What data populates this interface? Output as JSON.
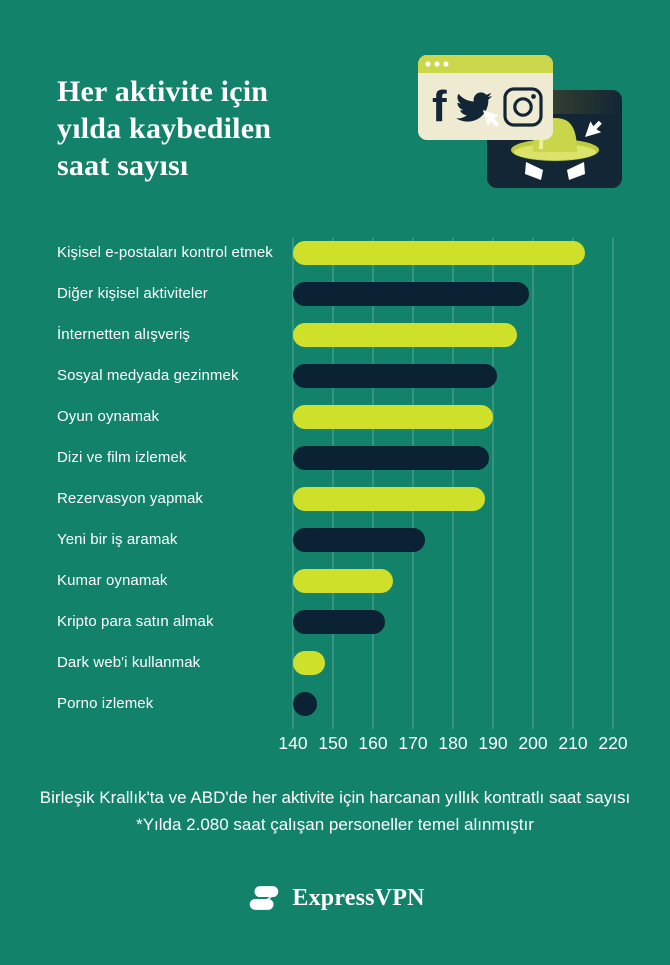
{
  "header": {
    "title": "Her aktivite için\nyılda kaybedilen\nsaat sayısı"
  },
  "illustration": {
    "icons": [
      "browser-window-icon",
      "facebook-icon",
      "twitter-icon",
      "instagram-icon",
      "cursor-icon",
      "spy-incognito-icon"
    ]
  },
  "chart_data": {
    "type": "bar",
    "orientation": "horizontal",
    "title": "Her aktivite için yılda kaybedilen saat sayısı",
    "categories": [
      "Kişisel e-postaları kontrol etmek",
      "Diğer kişisel aktiviteler",
      "İnternetten alışveriş",
      "Sosyal medyada gezinmek",
      "Oyun oynamak",
      "Dizi ve film izlemek",
      "Rezervasyon yapmak",
      "Yeni bir iş aramak",
      "Kumar oynamak",
      "Kripto para satın almak",
      "Dark web'i kullanmak",
      "Porno izlemek"
    ],
    "values": [
      213,
      199,
      196,
      191,
      190,
      189,
      188,
      173,
      165,
      163,
      148,
      146
    ],
    "bar_colors_alternating": [
      "#CFE02B",
      "#0A2233"
    ],
    "x_ticks": [
      140,
      150,
      160,
      170,
      180,
      190,
      200,
      210,
      220
    ],
    "xlim": [
      140,
      220
    ],
    "grid": true,
    "legend": "none",
    "xlabel": "",
    "ylabel": ""
  },
  "footnote": {
    "line1": "Birleşik Krallık'ta ve ABD'de her aktivite için harcanan yıllık kontratlı saat sayısı",
    "line2": "*Yılda 2.080 saat çalışan personeller temel alınmıştır"
  },
  "brand": {
    "name": "ExpressVPN"
  },
  "colors": {
    "bg": "#12826B",
    "lime": "#CFE02B",
    "navy": "#0A2233",
    "cream": "#EFEBD3",
    "card": "#132635",
    "winbar": "#CBD64A",
    "grid": "rgba(255,255,255,0.30)"
  }
}
